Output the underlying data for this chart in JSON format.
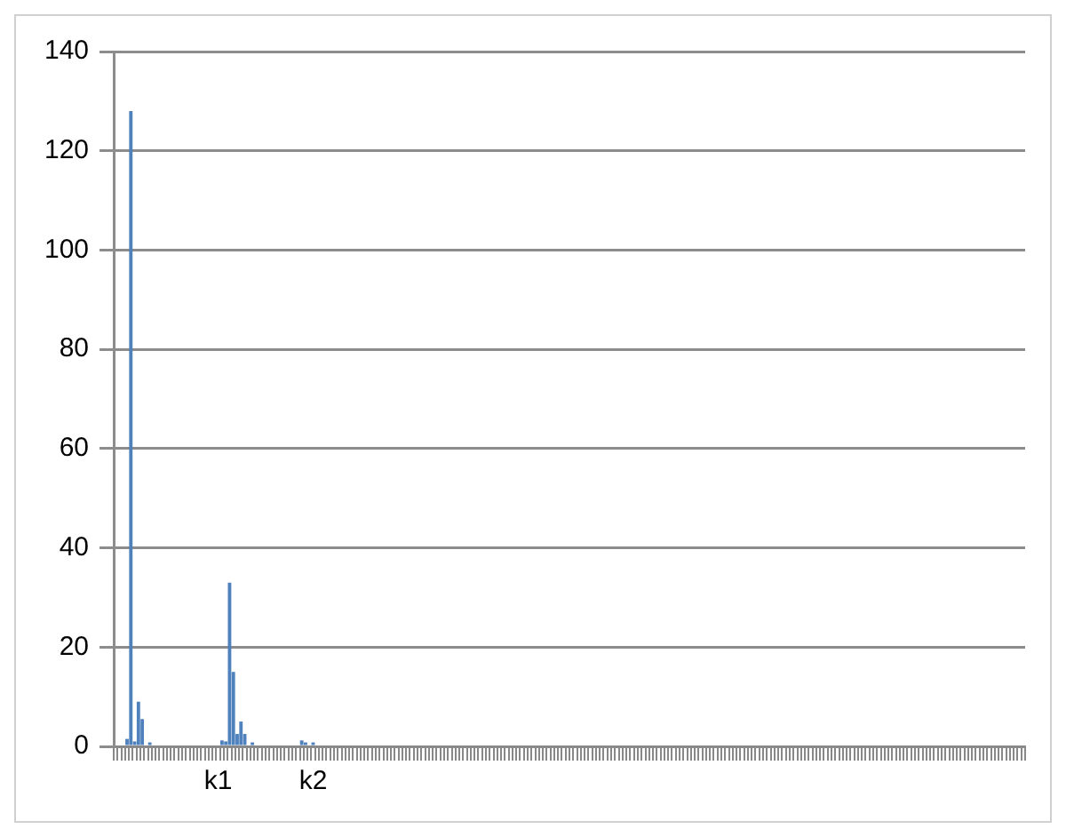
{
  "chart_data": {
    "type": "bar",
    "categories": [
      null,
      null,
      null,
      null,
      null,
      null,
      null,
      null,
      null,
      null,
      null,
      null,
      null,
      null,
      null,
      null,
      null,
      null,
      null,
      null,
      null,
      null,
      null,
      null,
      null,
      null,
      null,
      "k1",
      null,
      null,
      null,
      null,
      null,
      null,
      null,
      null,
      null,
      null,
      null,
      null,
      null,
      null,
      null,
      null,
      null,
      null,
      null,
      null,
      null,
      null,
      null,
      null,
      "k2",
      null,
      null,
      null,
      null,
      null,
      null,
      null,
      null,
      null,
      null,
      null,
      null,
      null,
      null,
      null,
      null,
      null,
      null,
      null,
      null,
      null,
      null,
      null,
      null,
      null,
      null,
      null,
      null,
      null,
      null,
      null,
      null,
      null,
      null,
      null,
      null,
      null,
      null,
      null,
      null,
      null,
      null,
      null,
      null,
      null,
      null,
      null,
      null,
      null,
      null,
      null,
      null,
      null,
      null,
      null,
      null,
      null,
      null,
      null,
      null,
      null,
      null,
      null,
      null,
      null,
      null,
      null,
      null,
      null,
      null,
      null,
      null,
      null,
      null,
      null,
      null,
      null,
      null,
      null,
      null,
      null,
      null,
      null,
      null,
      null,
      null,
      null,
      null,
      null,
      null,
      null,
      null,
      null,
      null,
      null,
      null,
      null,
      null,
      null,
      null,
      null,
      null,
      null,
      null,
      null,
      null,
      null,
      null,
      null,
      null,
      null,
      null,
      null,
      null,
      null,
      null,
      null,
      null,
      null,
      null,
      null,
      null,
      null,
      null,
      null,
      null,
      null,
      null,
      null,
      null,
      null,
      null,
      null,
      null,
      null,
      null,
      null,
      null,
      null,
      null,
      null,
      null,
      null,
      null,
      null,
      null,
      null,
      null,
      null,
      null,
      null,
      null,
      null,
      null,
      null,
      null,
      null,
      null,
      null,
      null,
      null,
      null,
      null,
      null,
      null,
      null,
      null,
      null,
      null,
      null,
      null,
      null,
      null,
      null,
      null,
      null,
      null,
      null,
      null,
      null,
      null,
      null,
      null,
      null,
      null,
      null,
      null
    ],
    "values": [
      0,
      0,
      0,
      1.5,
      128,
      1,
      9,
      5.5,
      0,
      0.8,
      0,
      0,
      0,
      0,
      0,
      0,
      0,
      0,
      0,
      0,
      0,
      0,
      0,
      0,
      0,
      0,
      0,
      0,
      1.2,
      1,
      33,
      15,
      2.5,
      5,
      2.5,
      0,
      0.8,
      0,
      0,
      0,
      0,
      0,
      0,
      0,
      0,
      0,
      0,
      0,
      0,
      1.2,
      0.8,
      0,
      0.8,
      0,
      0,
      0,
      0,
      0,
      0,
      0,
      0,
      0,
      0,
      0,
      0,
      0,
      0,
      0,
      0,
      0,
      0,
      0,
      0,
      0,
      0,
      0,
      0,
      0,
      0,
      0,
      0,
      0,
      0,
      0,
      0,
      0,
      0,
      0,
      0,
      0,
      0,
      0,
      0,
      0,
      0,
      0,
      0,
      0,
      0,
      0,
      0,
      0,
      0,
      0,
      0,
      0,
      0,
      0,
      0,
      0,
      0,
      0,
      0,
      0,
      0,
      0,
      0,
      0,
      0,
      0,
      0,
      0,
      0,
      0,
      0,
      0,
      0,
      0,
      0,
      0,
      0,
      0,
      0,
      0,
      0,
      0,
      0,
      0,
      0,
      0,
      0,
      0,
      0,
      0,
      0,
      0,
      0,
      0,
      0,
      0,
      0,
      0,
      0,
      0,
      0,
      0,
      0,
      0,
      0,
      0,
      0,
      0,
      0,
      0,
      0,
      0,
      0,
      0,
      0,
      0,
      0,
      0,
      0,
      0,
      0,
      0,
      0,
      0,
      0,
      0,
      0,
      0,
      0,
      0,
      0,
      0,
      0,
      0,
      0,
      0,
      0,
      0,
      0,
      0,
      0,
      0,
      0,
      0,
      0,
      0,
      0,
      0,
      0,
      0,
      0,
      0,
      0,
      0,
      0,
      0,
      0,
      0,
      0,
      0,
      0,
      0,
      0,
      0,
      0,
      0,
      0,
      0,
      0,
      0,
      0,
      0,
      0,
      0,
      0,
      0,
      0,
      0,
      0,
      0,
      0,
      0,
      0,
      0,
      0,
      0
    ],
    "color": "#4f81bd",
    "ylim": [
      0,
      140
    ],
    "yticks": [
      0,
      20,
      40,
      60,
      80,
      100,
      120,
      140
    ],
    "grid": "y",
    "legend": false
  }
}
